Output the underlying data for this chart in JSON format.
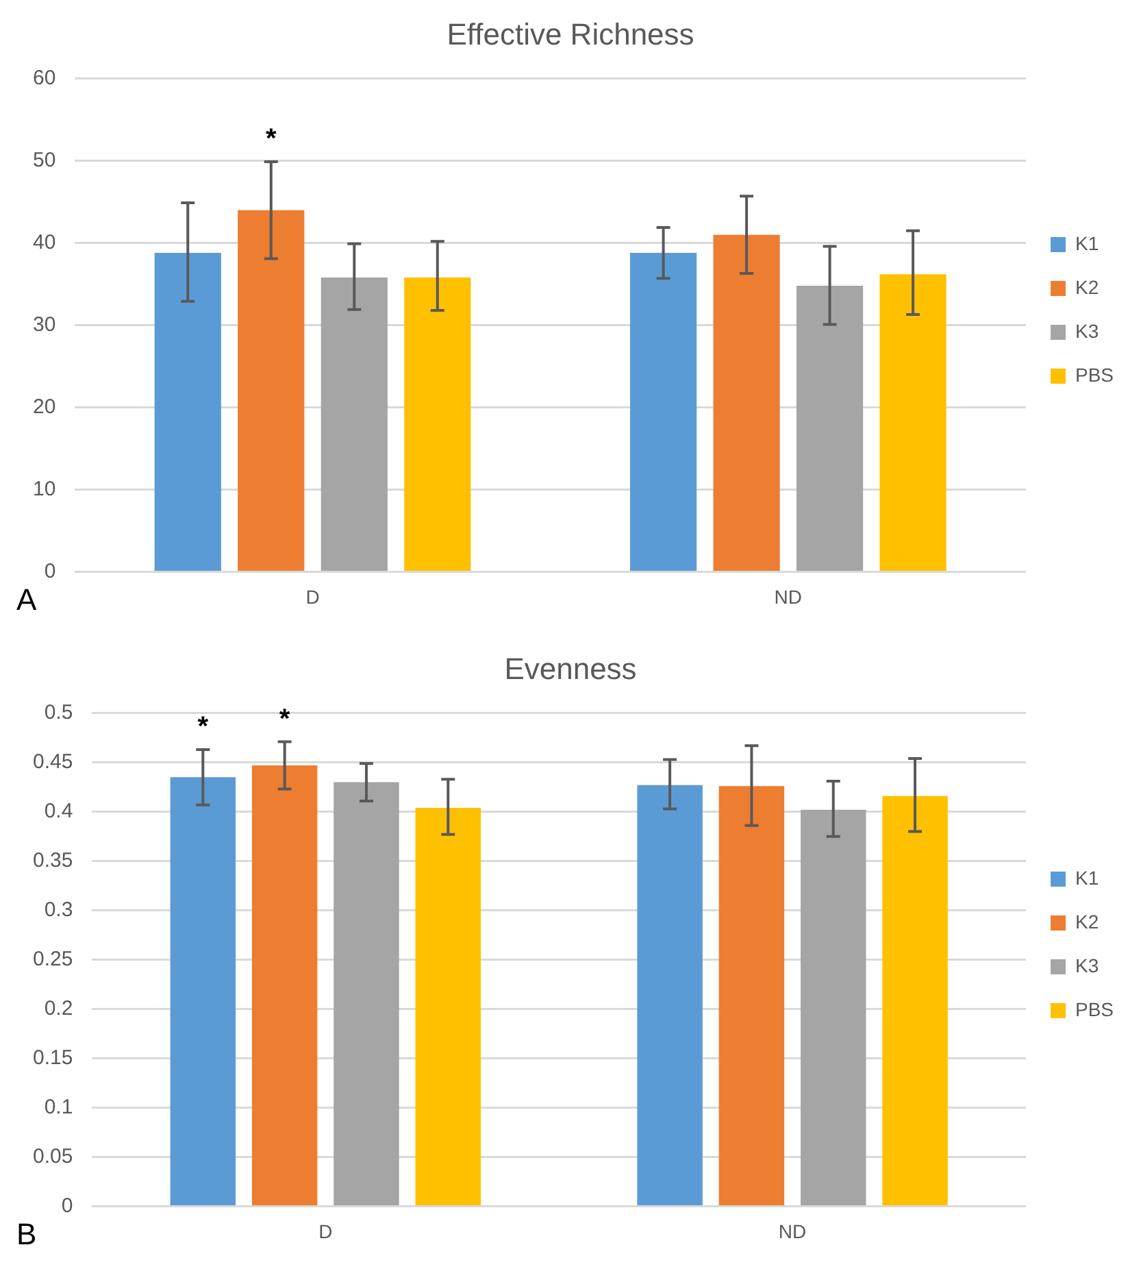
{
  "chart_data": [
    {
      "type": "bar",
      "title": "Effective Richness",
      "categories": [
        "D",
        "ND"
      ],
      "series": [
        {
          "name": "K1",
          "color": "#5b9bd5",
          "values": [
            38.8,
            38.8
          ],
          "errors": [
            [
              32.9,
              44.9
            ],
            [
              35.7,
              41.9
            ]
          ]
        },
        {
          "name": "K2",
          "color": "#ed7d31",
          "values": [
            44,
            41
          ],
          "errors": [
            [
              38.1,
              49.9
            ],
            [
              36.3,
              45.7
            ]
          ]
        },
        {
          "name": "K3",
          "color": "#a5a5a5",
          "values": [
            35.8,
            34.8
          ],
          "errors": [
            [
              31.9,
              39.9
            ],
            [
              30.1,
              39.6
            ]
          ]
        },
        {
          "name": "PBS",
          "color": "#ffc000",
          "values": [
            35.8,
            36.2
          ],
          "errors": [
            [
              31.8,
              40.2
            ],
            [
              31.3,
              41.5
            ]
          ]
        }
      ],
      "ylim": [
        0,
        60
      ],
      "yticks": [
        0,
        10,
        20,
        30,
        40,
        50,
        60
      ],
      "grid": "y",
      "legend": "right",
      "annotations": [
        "*",
        "A"
      ]
    },
    {
      "type": "bar",
      "title": "Evenness",
      "categories": [
        "D",
        "ND"
      ],
      "series": [
        {
          "name": "K1",
          "color": "#5b9bd5",
          "values": [
            0.435,
            0.427
          ],
          "errors": [
            [
              0.407,
              0.463
            ],
            [
              0.403,
              0.453
            ]
          ]
        },
        {
          "name": "K2",
          "color": "#ed7d31",
          "values": [
            0.447,
            0.426
          ],
          "errors": [
            [
              0.423,
              0.471
            ],
            [
              0.386,
              0.467
            ]
          ]
        },
        {
          "name": "K3",
          "color": "#a5a5a5",
          "values": [
            0.43,
            0.402
          ],
          "errors": [
            [
              0.411,
              0.449
            ],
            [
              0.375,
              0.431
            ]
          ]
        },
        {
          "name": "PBS",
          "color": "#ffc000",
          "values": [
            0.404,
            0.416
          ],
          "errors": [
            [
              0.377,
              0.433
            ],
            [
              0.38,
              0.454
            ]
          ]
        }
      ],
      "ylim": [
        0,
        0.5
      ],
      "yticks": [
        0,
        0.05,
        0.1,
        0.15,
        0.2,
        0.25,
        0.3,
        0.35,
        0.4,
        0.45,
        0.5
      ],
      "grid": "y",
      "legend": "right",
      "annotations": [
        "*",
        "*",
        "B"
      ]
    }
  ]
}
